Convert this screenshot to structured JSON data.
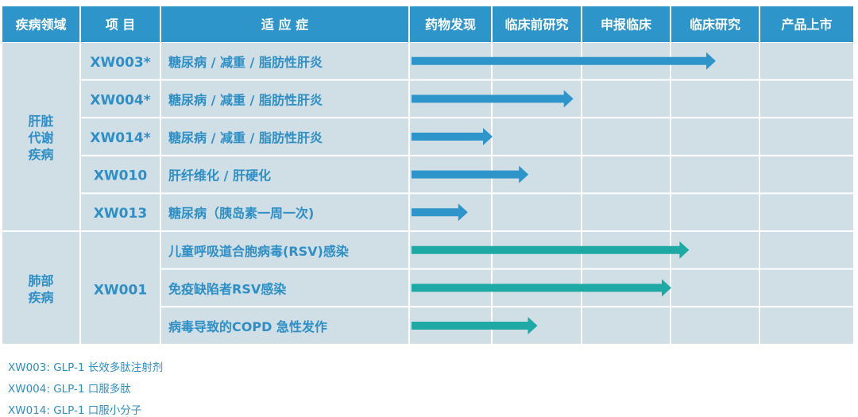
{
  "chart_data": {
    "type": "table",
    "headers": [
      "疾病领域",
      "项  目",
      "适  应  症",
      "药物发现",
      "临床前研究",
      "申报临床",
      "临床研究",
      "产品上市"
    ],
    "stages": [
      "药物发现",
      "临床前研究",
      "申报临床",
      "临床研究",
      "产品上市"
    ],
    "groups": [
      {
        "area": [
          "肝脏",
          "代谢",
          "疾病"
        ],
        "color": "#2e95cb",
        "rows": [
          {
            "project": "XW003*",
            "indication": "糖尿病 / 减重 / 脂肪性肝炎",
            "progress": 3.5
          },
          {
            "project": "XW004*",
            "indication": "糖尿病 / 减重 / 脂肪性肝炎",
            "progress": 1.9
          },
          {
            "project": "XW014*",
            "indication": "糖尿病 / 减重 / 脂肪性肝炎",
            "progress": 1.0
          },
          {
            "project": "XW010",
            "indication": "肝纤维化 / 肝硬化",
            "progress": 1.4
          },
          {
            "project": "XW013",
            "indication": "糖尿病（胰岛素一周一次)",
            "progress": 0.7
          }
        ]
      },
      {
        "area": [
          "肺部",
          "疾病"
        ],
        "color": "#1fa9a5",
        "project": "XW001",
        "rows": [
          {
            "indication": "儿童呼吸道合胞病毒(RSV)感染",
            "progress": 3.2
          },
          {
            "indication": "免疫缺陷者RSV感染",
            "progress": 3.0
          },
          {
            "indication": "病毒导致的COPD 急性发作",
            "progress": 1.5
          }
        ]
      }
    ]
  },
  "footnotes": [
    "XW003: GLP-1 长效多肽注射剂",
    "XW004: GLP-1 口服多肽",
    "XW014: GLP-1 口服小分子"
  ],
  "colors": {
    "header_bg": "#2e95cb",
    "header_text": "#ffffff",
    "cell_bg": "#d0dee5",
    "project_text": "#2e8fc6",
    "indication_text": "#2e8fc6",
    "area_text": "#2e8fc6",
    "grid": "#ffffff"
  }
}
